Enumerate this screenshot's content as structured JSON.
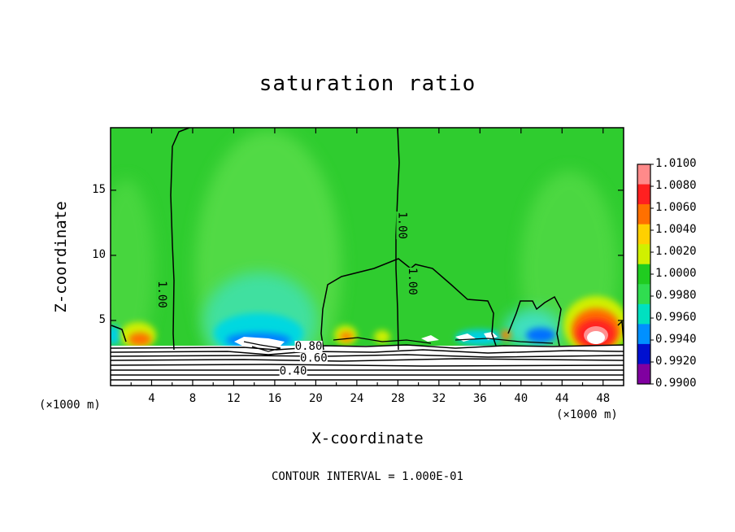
{
  "chart_data": {
    "type": "heatmap",
    "title": "saturation ratio",
    "xlabel": "X-coordinate",
    "ylabel": "Z-coordinate",
    "x_unit_left": "(×1000 m)",
    "x_unit_right": "(×1000 m)",
    "xlim": [
      0,
      50
    ],
    "ylim": [
      0,
      19.8
    ],
    "x_ticks": [
      4,
      8,
      12,
      16,
      20,
      24,
      28,
      32,
      36,
      40,
      44,
      48
    ],
    "y_ticks": [
      5,
      10,
      15
    ],
    "colorbar": {
      "levels": [
        "1.0100",
        "1.0080",
        "1.0060",
        "1.0040",
        "1.0020",
        "1.0000",
        "0.9980",
        "0.9960",
        "0.9940",
        "0.9920",
        "0.9900"
      ],
      "colors": [
        "#ff8a8a",
        "#ff2020",
        "#ff7000",
        "#ffd000",
        "#d0f000",
        "#20cc20",
        "#30dd50",
        "#00e0c0",
        "#0090ff",
        "#0010d0",
        "#8000a0"
      ]
    },
    "contour_labels": [
      {
        "text": "1.00",
        "x": 5.0,
        "z": 7.0
      },
      {
        "text": "1.00",
        "x": 28.4,
        "z": 12.3
      },
      {
        "text": "1.00",
        "x": 29.4,
        "z": 8.0
      },
      {
        "text": "0.80",
        "x": 19.3,
        "z": 3.0
      },
      {
        "text": "0.60",
        "x": 19.8,
        "z": 2.1
      },
      {
        "text": "0.40",
        "x": 17.8,
        "z": 1.1
      }
    ],
    "footer": "CONTOUR INTERVAL = 1.000E-01"
  }
}
